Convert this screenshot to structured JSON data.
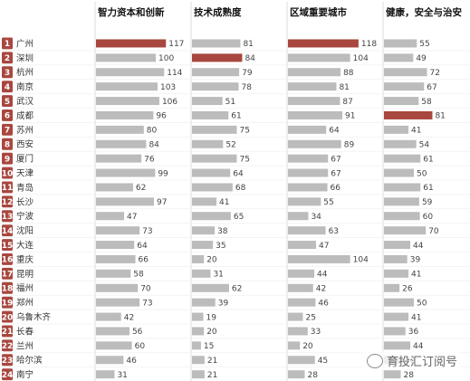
{
  "chart_data": {
    "type": "bar",
    "title": "",
    "xlabel": "",
    "ylabel": "",
    "colors": {
      "bar": "#bcbcbc",
      "highlight": "#a8473f",
      "rank_box": "#a8473f"
    },
    "ranks": [
      "1",
      "2",
      "3",
      "4",
      "5",
      "6",
      "7",
      "8",
      "9",
      "10",
      "11",
      "12",
      "13",
      "14",
      "15",
      "16",
      "17",
      "18",
      "19",
      "20",
      "21",
      "22",
      "23",
      "24"
    ],
    "categories": [
      "广州",
      "深圳",
      "杭州",
      "南京",
      "武汉",
      "成都",
      "苏州",
      "西安",
      "厦门",
      "天津",
      "青岛",
      "长沙",
      "宁波",
      "沈阳",
      "大连",
      "重庆",
      "昆明",
      "福州",
      "郑州",
      "乌鲁木齐",
      "长春",
      "兰州",
      "哈尔滨",
      "南宁"
    ],
    "series": [
      {
        "name": "智力资本和创新",
        "values": [
          117,
          100,
          114,
          103,
          106,
          96,
          80,
          84,
          76,
          99,
          62,
          97,
          47,
          73,
          64,
          66,
          58,
          70,
          73,
          42,
          56,
          60,
          46,
          31
        ]
      },
      {
        "name": "技术成熟度",
        "values": [
          81,
          84,
          79,
          78,
          51,
          61,
          75,
          52,
          75,
          64,
          68,
          41,
          65,
          38,
          35,
          20,
          31,
          62,
          39,
          19,
          20,
          15,
          21,
          21
        ]
      },
      {
        "name": "区域重要城市",
        "values": [
          118,
          104,
          88,
          81,
          87,
          91,
          64,
          89,
          67,
          67,
          66,
          55,
          34,
          63,
          47,
          104,
          44,
          42,
          46,
          25,
          33,
          20,
          45,
          28
        ]
      },
      {
        "name": "健康，安全与治安",
        "values": [
          55,
          49,
          72,
          67,
          58,
          81,
          41,
          54,
          61,
          50,
          61,
          59,
          60,
          70,
          44,
          39,
          41,
          26,
          50,
          41,
          36,
          44,
          30,
          28
        ]
      }
    ]
  },
  "watermark": {
    "text": "育投汇订阅号",
    "icon": "wechat-icon"
  }
}
